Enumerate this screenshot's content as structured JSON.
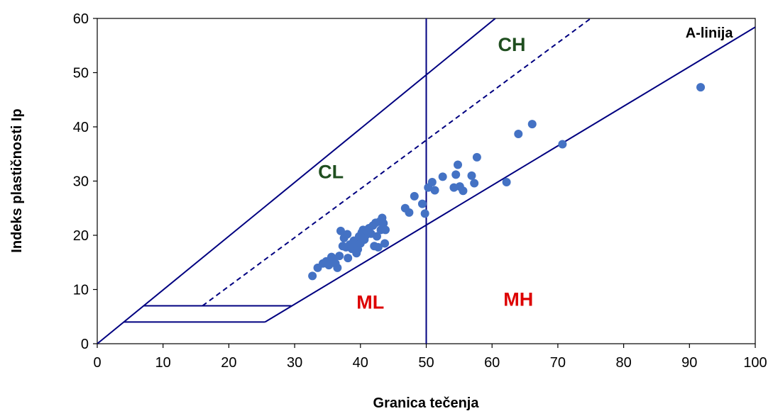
{
  "chart_data": {
    "type": "scatter",
    "title": "",
    "xlabel": "Granica tečenja",
    "ylabel": "Indeks plastičnosti Ip",
    "xlim": [
      0,
      100
    ],
    "ylim": [
      0,
      60
    ],
    "xticks": [
      "0",
      "10",
      "20",
      "30",
      "40",
      "50",
      "60",
      "70",
      "80",
      "90",
      "100"
    ],
    "yticks": [
      "0",
      "10",
      "20",
      "30",
      "40",
      "50",
      "60"
    ],
    "grid": false,
    "legend": "none",
    "colors": {
      "points": "#4472C4",
      "lines": "#000080",
      "clch": "#1F4E1F",
      "mlmh": "#DD0000"
    },
    "region_labels": [
      {
        "text": "CL",
        "x": 35.5,
        "y": 30.5,
        "color": "#1F4E1F"
      },
      {
        "text": "CH",
        "x": 63,
        "y": 54,
        "color": "#1F4E1F"
      },
      {
        "text": "ML",
        "x": 41.5,
        "y": 6.5,
        "color": "#DD0000"
      },
      {
        "text": "MH",
        "x": 64,
        "y": 7,
        "color": "#DD0000"
      }
    ],
    "a_line_label": {
      "text": "A-linija",
      "x": 93,
      "y": 56.5
    },
    "reference_lines": [
      {
        "name": "A-line",
        "style": "solid",
        "points": [
          [
            25.5,
            4
          ],
          [
            100,
            58.4
          ]
        ]
      },
      {
        "name": "U-line",
        "style": "solid",
        "points": [
          [
            0,
            0
          ],
          [
            60.5,
            60
          ]
        ]
      },
      {
        "name": "dashed",
        "style": "dashed",
        "points": [
          [
            16,
            7
          ],
          [
            75,
            60
          ]
        ]
      },
      {
        "name": "LL-50",
        "style": "solid",
        "points": [
          [
            50,
            0
          ],
          [
            50,
            60
          ]
        ]
      },
      {
        "name": "Ip-7",
        "style": "solid",
        "points": [
          [
            7,
            7
          ],
          [
            29.5,
            7
          ]
        ]
      },
      {
        "name": "Ip-4",
        "style": "solid",
        "points": [
          [
            4,
            4
          ],
          [
            25.5,
            4
          ]
        ]
      }
    ],
    "series": [
      {
        "values": [
          [
            32.7,
            12.5
          ],
          [
            33.5,
            14.0
          ],
          [
            34.3,
            14.8
          ],
          [
            34.8,
            15.2
          ],
          [
            35.2,
            14.5
          ],
          [
            35.6,
            16.0
          ],
          [
            35.9,
            15.5
          ],
          [
            36.2,
            14.8
          ],
          [
            36.5,
            14.0
          ],
          [
            36.8,
            16.2
          ],
          [
            37.0,
            20.8
          ],
          [
            37.3,
            18.0
          ],
          [
            37.5,
            19.5
          ],
          [
            37.8,
            17.8
          ],
          [
            38.0,
            20.2
          ],
          [
            38.1,
            15.8
          ],
          [
            38.4,
            18.3
          ],
          [
            38.7,
            17.5
          ],
          [
            39.0,
            19.0
          ],
          [
            39.2,
            18.0
          ],
          [
            39.4,
            16.7
          ],
          [
            39.6,
            17.4
          ],
          [
            39.8,
            19.8
          ],
          [
            40.0,
            18.5
          ],
          [
            40.2,
            20.5
          ],
          [
            40.4,
            21.0
          ],
          [
            40.6,
            19.2
          ],
          [
            40.8,
            20.0
          ],
          [
            41.0,
            20.8
          ],
          [
            41.3,
            21.3
          ],
          [
            41.6,
            20.3
          ],
          [
            41.9,
            21.8
          ],
          [
            42.1,
            18.0
          ],
          [
            42.3,
            22.3
          ],
          [
            42.5,
            19.8
          ],
          [
            42.7,
            17.8
          ],
          [
            42.9,
            22.5
          ],
          [
            43.1,
            21.0
          ],
          [
            43.3,
            23.2
          ],
          [
            43.5,
            22.2
          ],
          [
            43.7,
            18.5
          ],
          [
            43.8,
            21.0
          ],
          [
            46.8,
            25.0
          ],
          [
            47.4,
            24.2
          ],
          [
            48.2,
            27.2
          ],
          [
            49.4,
            25.8
          ],
          [
            49.8,
            24.0
          ],
          [
            50.3,
            28.8
          ],
          [
            50.9,
            29.8
          ],
          [
            51.3,
            28.3
          ],
          [
            52.5,
            30.8
          ],
          [
            54.2,
            28.8
          ],
          [
            54.5,
            31.2
          ],
          [
            54.8,
            33.0
          ],
          [
            55.1,
            29.0
          ],
          [
            55.6,
            28.2
          ],
          [
            56.9,
            31.0
          ],
          [
            57.3,
            29.6
          ],
          [
            57.7,
            34.4
          ],
          [
            62.2,
            29.8
          ],
          [
            64.0,
            38.7
          ],
          [
            66.1,
            40.5
          ],
          [
            70.7,
            36.8
          ],
          [
            91.7,
            47.3
          ]
        ]
      }
    ]
  }
}
